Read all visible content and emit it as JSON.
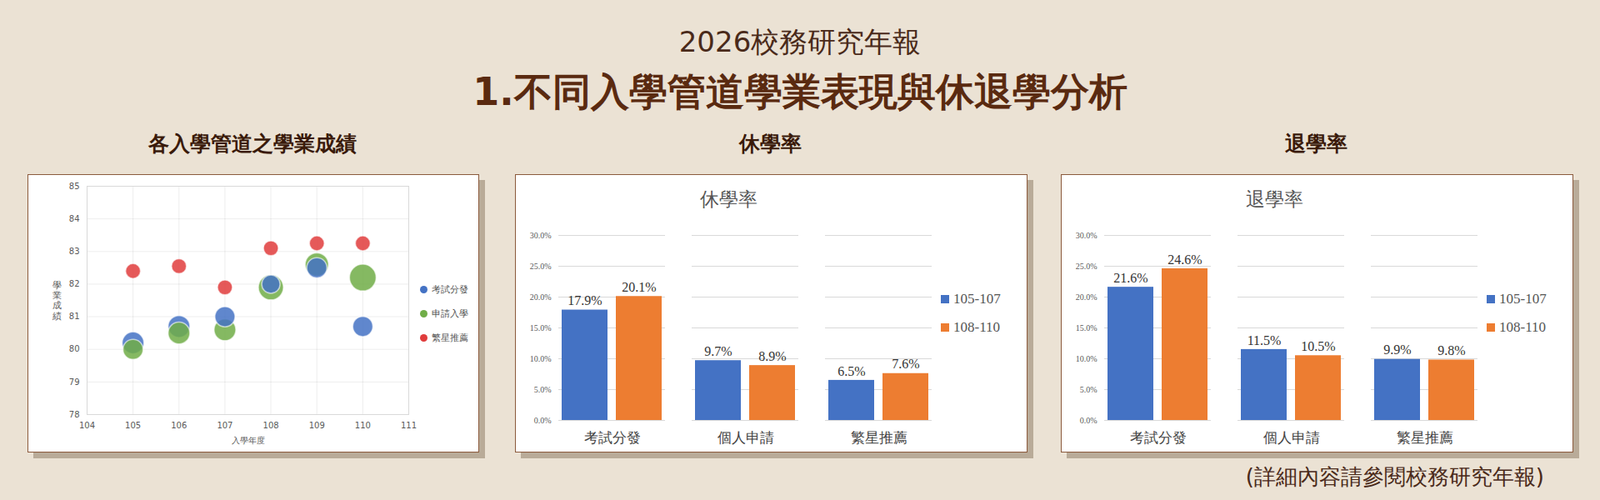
{
  "header": {
    "subtitle": "2026校務研究年報",
    "title": "1.不同入學管道學業表現與休退學分析"
  },
  "footer": "(詳細內容請參閱校務研究年報)",
  "chart_data": [
    {
      "type": "scatter",
      "panel_title": "各入學管道之學業成績",
      "x_label": "入學年度",
      "y_label": "學業成績",
      "x": [
        105,
        106,
        107,
        108,
        109,
        110
      ],
      "series": [
        {
          "name": "考試分發",
          "color": "#4472c4",
          "values": [
            80.2,
            80.7,
            81.0,
            82.0,
            82.5,
            80.7
          ],
          "sizes": [
            170,
            170,
            145,
            120,
            145,
            145
          ]
        },
        {
          "name": "申請入學",
          "color": "#70ad47",
          "values": [
            80.0,
            80.5,
            80.6,
            81.9,
            82.6,
            82.2
          ],
          "sizes": [
            145,
            170,
            170,
            225,
            195,
            255
          ]
        },
        {
          "name": "繁星推薦",
          "color": "#e03c3c",
          "values": [
            82.4,
            82.55,
            81.9,
            83.1,
            83.25,
            83.25
          ],
          "sizes": [
            80,
            80,
            80,
            80,
            80,
            80
          ]
        }
      ],
      "xlim": [
        104,
        111
      ],
      "xticks": [
        104,
        105,
        106,
        107,
        108,
        109,
        110,
        111
      ],
      "ylim": [
        78,
        85
      ],
      "yticks": [
        78,
        79,
        80,
        81,
        82,
        83,
        84,
        85
      ],
      "grid": true,
      "legend": "right",
      "marker": "circle"
    },
    {
      "type": "bar",
      "panel_title": "休學率",
      "title": "休學率",
      "categories": [
        "考試分發",
        "個人申請",
        "繁星推薦"
      ],
      "series": [
        {
          "name": "105-107",
          "color": "#4472c4",
          "values": [
            17.9,
            9.7,
            6.5
          ],
          "value_labels": [
            "17.9%",
            "9.7%",
            "6.5%"
          ]
        },
        {
          "name": "108-110",
          "color": "#ed7d31",
          "values": [
            20.1,
            8.9,
            7.6
          ],
          "value_labels": [
            "20.1%",
            "8.9%",
            "7.6%"
          ]
        }
      ],
      "ylim": [
        0,
        30
      ],
      "yticks": [
        {
          "value": 0,
          "label": "0.0%"
        },
        {
          "value": 5,
          "label": "5.0%"
        },
        {
          "value": 10,
          "label": "10.0%"
        },
        {
          "value": 15,
          "label": "15.0%"
        },
        {
          "value": 20,
          "label": "20.0%"
        },
        {
          "value": 25,
          "label": "25.0%"
        },
        {
          "value": 30,
          "label": "30.0%"
        }
      ],
      "grid": true,
      "legend": "right",
      "data_labels": true
    },
    {
      "type": "bar",
      "panel_title": "退學率",
      "title": "退學率",
      "categories": [
        "考試分發",
        "個人申請",
        "繁星推薦"
      ],
      "series": [
        {
          "name": "105-107",
          "color": "#4472c4",
          "values": [
            21.6,
            11.5,
            9.9
          ],
          "value_labels": [
            "21.6%",
            "11.5%",
            "9.9%"
          ]
        },
        {
          "name": "108-110",
          "color": "#ed7d31",
          "values": [
            24.6,
            10.5,
            9.8
          ],
          "value_labels": [
            "24.6%",
            "10.5%",
            "9.8%"
          ]
        }
      ],
      "ylim": [
        0,
        30
      ],
      "yticks": [
        {
          "value": 0,
          "label": "0.0%"
        },
        {
          "value": 5,
          "label": "5.0%"
        },
        {
          "value": 10,
          "label": "10.0%"
        },
        {
          "value": 15,
          "label": "15.0%"
        },
        {
          "value": 20,
          "label": "20.0%"
        },
        {
          "value": 25,
          "label": "25.0%"
        },
        {
          "value": 30,
          "label": "30.0%"
        }
      ],
      "grid": true,
      "legend": "right",
      "data_labels": true
    }
  ]
}
